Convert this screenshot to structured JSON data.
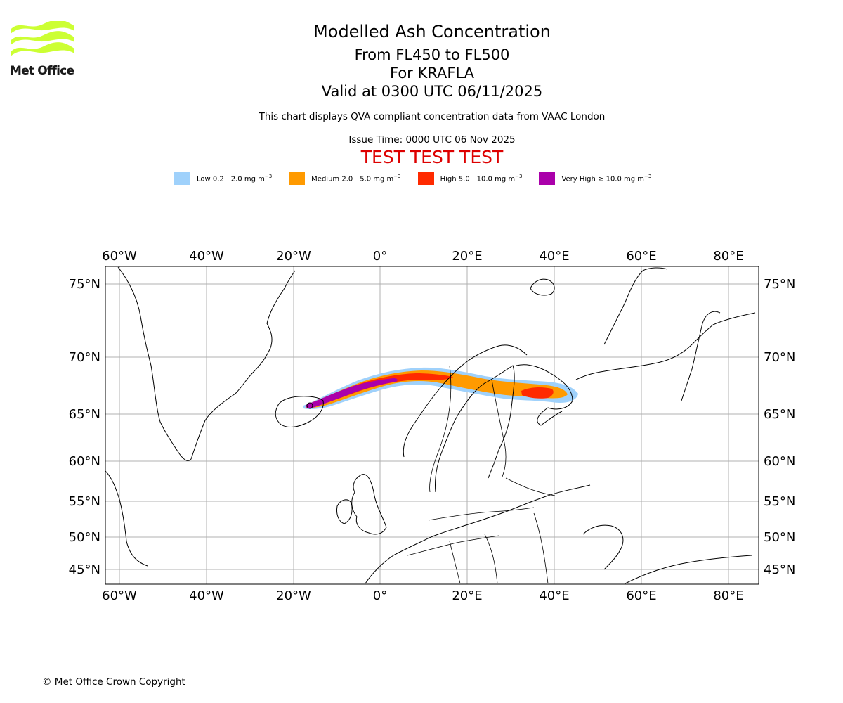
{
  "org": {
    "name": "Met Office",
    "logo_color": "#ccff33"
  },
  "titles": {
    "main": "Modelled Ash Concentration",
    "levels": "From FL450 to FL500",
    "volcano": "For KRAFLA",
    "valid": "Valid at 0300 UTC 06/11/2025",
    "note": "This chart displays QVA compliant concentration data from VAAC London",
    "issue": "Issue Time: 0000 UTC 06 Nov 2025",
    "test": "TEST TEST TEST"
  },
  "legend": [
    {
      "label": "Low 0.2 - 2.0 mg m",
      "unit_exp": "−3",
      "color": "#9fd1fb"
    },
    {
      "label": "Medium 2.0 - 5.0 mg m",
      "unit_exp": "−3",
      "color": "#ff9a00"
    },
    {
      "label": "High 5.0 - 10.0 mg m",
      "unit_exp": "−3",
      "color": "#ff2a00"
    },
    {
      "label": "Very High  ≥  10.0 mg m",
      "unit_exp": "−3",
      "color": "#aa00aa"
    }
  ],
  "map": {
    "lon_ticks": [
      "60°W",
      "40°W",
      "20°W",
      "0°",
      "20°E",
      "40°E",
      "60°E",
      "80°E"
    ],
    "lat_ticks": [
      "75°N",
      "70°N",
      "65°N",
      "60°N",
      "55°N",
      "50°N",
      "45°N"
    ],
    "extent": {
      "lon": [
        -63,
        87
      ],
      "lat": [
        43,
        76.5
      ]
    },
    "grid": true,
    "ash_plume": {
      "source": "KRAFLA",
      "source_lonlat": [
        -16.8,
        65.7
      ],
      "levels": [
        "Low",
        "Medium",
        "High",
        "Very High"
      ]
    }
  },
  "copyright": "© Met Office Crown Copyright"
}
